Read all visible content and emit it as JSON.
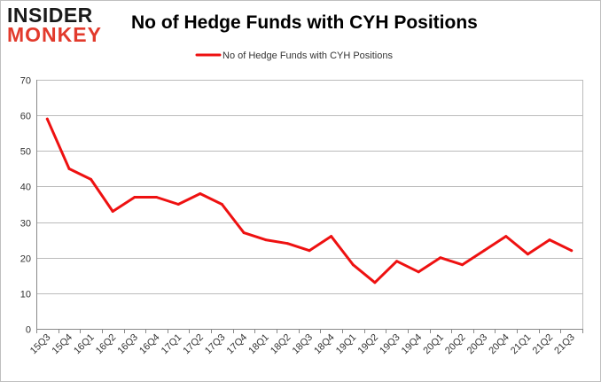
{
  "logo": {
    "line1": "INSIDER",
    "line2": "MONKEY"
  },
  "colors": {
    "series": "#ee1111",
    "grid": "#bbbbbb",
    "axis": "#888888",
    "text": "#333333",
    "logo_dark": "#1a1a1a",
    "logo_red": "#e23a2c"
  },
  "chart_data": {
    "type": "line",
    "title": "No of Hedge Funds with CYH Positions",
    "xlabel": "",
    "ylabel": "",
    "ylim": [
      0,
      70
    ],
    "yticks": [
      0,
      10,
      20,
      30,
      40,
      50,
      60,
      70
    ],
    "grid": true,
    "legend_position": "top-center",
    "categories": [
      "15Q3",
      "15Q4",
      "16Q1",
      "16Q2",
      "16Q3",
      "16Q4",
      "17Q1",
      "17Q2",
      "17Q3",
      "17Q4",
      "18Q1",
      "18Q2",
      "18Q3",
      "18Q4",
      "19Q1",
      "19Q2",
      "19Q3",
      "19Q4",
      "20Q1",
      "20Q2",
      "20Q3",
      "20Q4",
      "21Q1",
      "21Q2",
      "21Q3"
    ],
    "series": [
      {
        "name": "No of Hedge Funds with CYH Positions",
        "values": [
          59,
          45,
          42,
          33,
          37,
          37,
          35,
          38,
          35,
          27,
          25,
          24,
          22,
          26,
          18,
          13,
          19,
          16,
          20,
          18,
          22,
          26,
          21,
          25,
          22
        ]
      }
    ]
  }
}
